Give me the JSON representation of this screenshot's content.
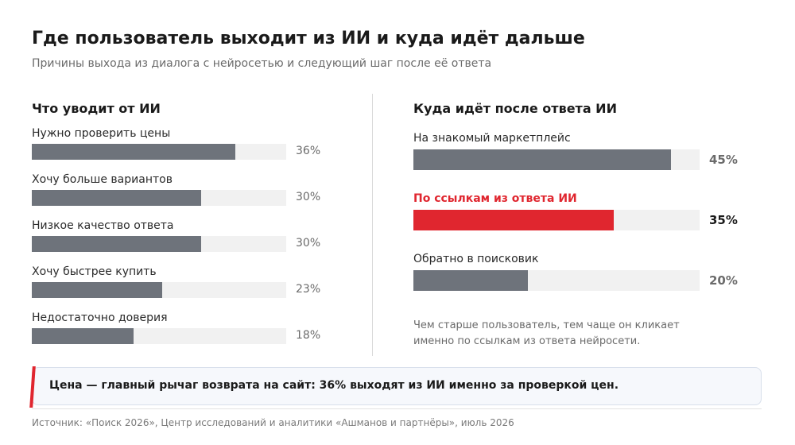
{
  "title": "Где пользователь выходит из ИИ и куда идёт дальше",
  "subtitle": "Причины выхода из диалога с нейросетью и следующий шаг после её ответа",
  "chart_data": [
    {
      "type": "bar",
      "orientation": "horizontal",
      "title": "Что уводит от ИИ",
      "categories": [
        "Нужно проверить цены",
        "Хочу больше вариантов",
        "Низкое качество ответа",
        "Хочу быстрее купить",
        "Недостаточно доверия"
      ],
      "values": [
        36,
        30,
        30,
        23,
        18
      ],
      "value_labels": [
        "36%",
        "30%",
        "30%",
        "23%",
        "18%"
      ],
      "xlim": [
        0,
        45
      ],
      "unit": "%",
      "grid": false
    },
    {
      "type": "bar",
      "orientation": "horizontal",
      "title": "Куда идёт после ответа ИИ",
      "categories": [
        "На знакомый маркетплейс",
        "По ссылкам из ответа ИИ",
        "Обратно в поисковик"
      ],
      "values": [
        45,
        35,
        20
      ],
      "value_labels": [
        "45%",
        "35%",
        "20%"
      ],
      "highlight_index": 1,
      "xlim": [
        0,
        50
      ],
      "unit": "%",
      "grid": false
    }
  ],
  "colors": {
    "bar": "#6e737b",
    "highlight": "#e0262f",
    "track": "#f1f1f1"
  },
  "note": "Чем старше пользователь, тем чаще он кликает именно по ссылкам из ответа нейросети.",
  "callout": "Цена — главный рычаг возврата на сайт: 36% выходят из ИИ именно за проверкой цен.",
  "source": "Источник: «Поиск 2026», Центр исследований и аналитики «Ашманов и партнёры», июль 2026"
}
